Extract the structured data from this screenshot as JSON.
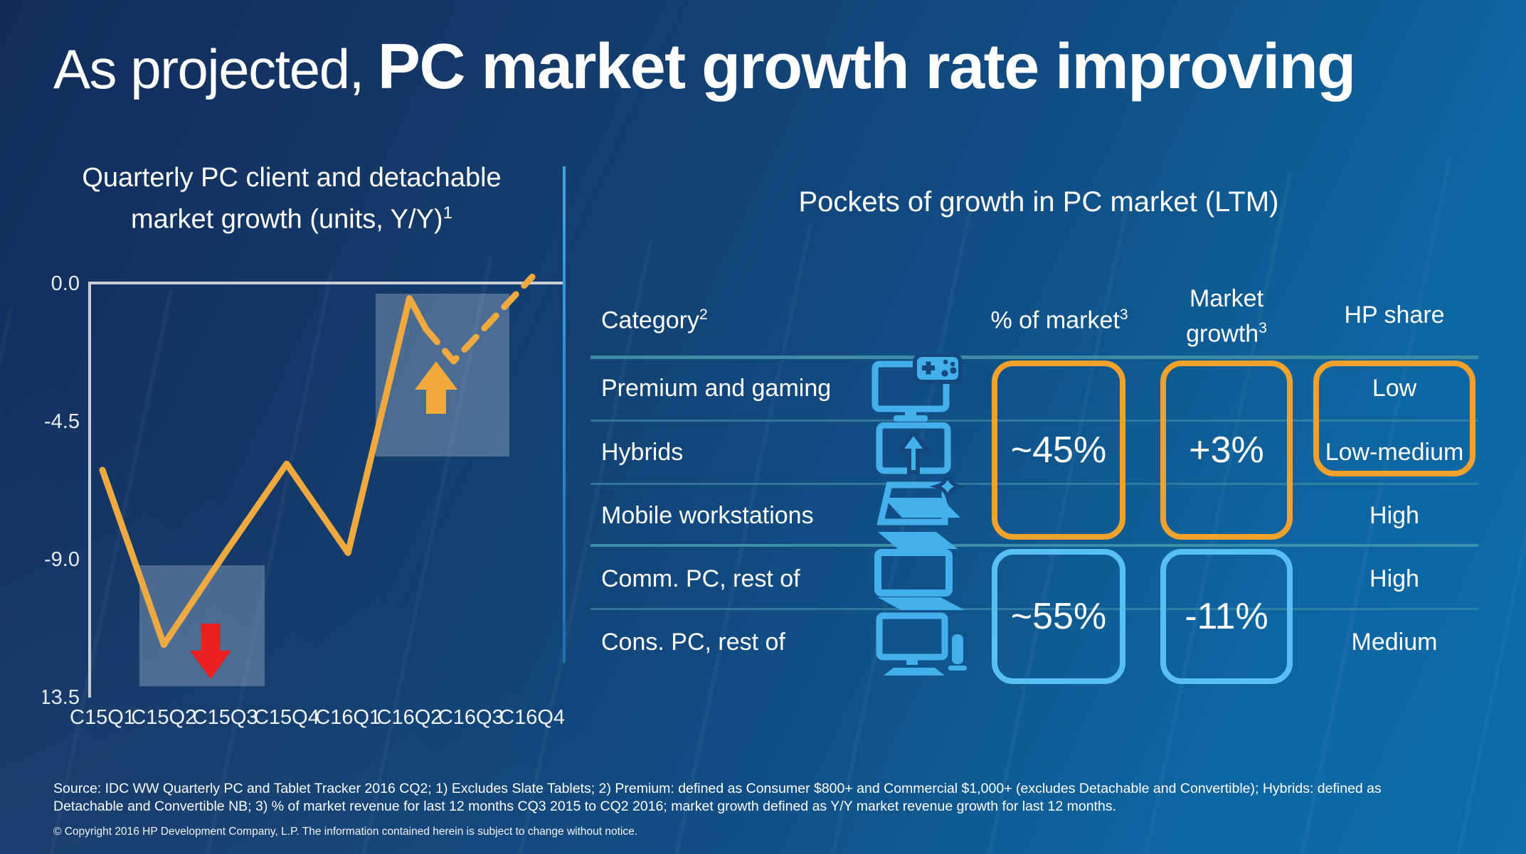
{
  "slide": {
    "title": {
      "prefix": "As projected, ",
      "emphasis": "PC market growth rate improving"
    },
    "footer": {
      "source": "Source: IDC WW Quarterly PC and Tablet Tracker 2016 CQ2; 1) Excludes Slate Tablets; 2) Premium: defined as Consumer $800+ and Commercial $1,000+ (excludes Detachable and Convertible); Hybrids: defined as Detachable and Convertible NB; 3) % of market revenue for last 12 months CQ3 2015 to CQ2 2016; market growth defined as Y/Y market revenue growth for last 12 months.",
      "copyright": "© Copyright 2016 HP Development Company, L.P. The information contained herein is subject to change without notice."
    }
  },
  "chart": {
    "title_line1": "Quarterly PC client and detachable",
    "title_line2": "market growth (units, Y/Y)",
    "title_sup": "1"
  },
  "chart_data": {
    "type": "line",
    "title": "Quarterly PC client and detachable market growth (units, Y/Y)1",
    "xlabel": "",
    "ylabel": "",
    "categories": [
      "C15Q1",
      "C15Q2",
      "C15Q3",
      "C15Q4",
      "C16Q1",
      "C16Q2",
      "C16Q3",
      "C16Q4"
    ],
    "y_ticks": [
      "0.0",
      "-4.5",
      "-9.0",
      "-13.5"
    ],
    "ylim": [
      -14.5,
      0.5
    ],
    "grid": false,
    "legend": "none",
    "line_color": "#EFA93F",
    "series": [
      {
        "name": "actual",
        "style": "solid",
        "points": [
          [
            0,
            -6.1
          ],
          [
            1,
            -11.8
          ],
          [
            2,
            -8.8
          ],
          [
            3,
            -5.9
          ],
          [
            4,
            -8.8
          ],
          [
            5,
            -0.5
          ],
          [
            5.27,
            -1.5
          ]
        ]
      },
      {
        "name": "projected",
        "style": "dashed",
        "points": [
          [
            5.27,
            -1.5
          ],
          [
            5.72,
            -2.55
          ],
          [
            7,
            0.2
          ]
        ]
      }
    ],
    "annotations": [
      {
        "type": "highlight-box",
        "label": "downturn-trough",
        "quarters": "C15Q2–C15Q3",
        "arrow": "down",
        "arrow_color": "#EE1C1C"
      },
      {
        "type": "highlight-box",
        "label": "improving-outlook",
        "quarters": "C16Q2–C16Q3",
        "arrow": "up",
        "arrow_color": "#F2A93B"
      }
    ]
  },
  "table": {
    "title": "Pockets of growth in PC market (LTM)",
    "headers": {
      "category": {
        "text": "Category",
        "sup": "2"
      },
      "pct": {
        "text": "% of market",
        "sup": "3"
      },
      "growth_line1": "Market",
      "growth_line2": "growth",
      "growth_sup": "3",
      "hp": "HP share"
    },
    "rows": [
      {
        "label": "Premium and gaming",
        "icon": "monitor-gamepad-icon",
        "hp_share": "Low"
      },
      {
        "label": "Hybrids",
        "icon": "detachable-tablet-icon",
        "hp_share": "Low-medium"
      },
      {
        "label": "Mobile workstations",
        "icon": "laptop-sparkle-icon",
        "hp_share": "High"
      },
      {
        "label": "Comm. PC, rest of",
        "icon": "laptop-icon",
        "hp_share": "High"
      },
      {
        "label": "Cons. PC, rest of",
        "icon": "desktop-tower-icon",
        "hp_share": "Medium"
      }
    ],
    "groups": [
      {
        "rows": "Premium and gaming, Hybrids, Mobile workstations",
        "pct_of_market": "~45%",
        "market_growth": "+3%",
        "highlight": "orange"
      },
      {
        "rows": "Comm. PC rest of, Cons. PC rest of",
        "pct_of_market": "~55%",
        "market_growth": "-11%",
        "highlight": "blue"
      }
    ]
  },
  "colors": {
    "background_top_left": "#122C59",
    "background_bottom_right": "#0D6CAC",
    "line_orange": "#EFA93F",
    "box_orange": "#F0A22C",
    "box_blue": "#57BFF2",
    "icon_blue": "#44B0EB",
    "rule_teal": "#3E8CA4",
    "axis_gray": "#C9CED6",
    "arrow_red": "#EE1C1C",
    "arrow_amber": "#F2A93B",
    "text": "#FFFFFF"
  }
}
